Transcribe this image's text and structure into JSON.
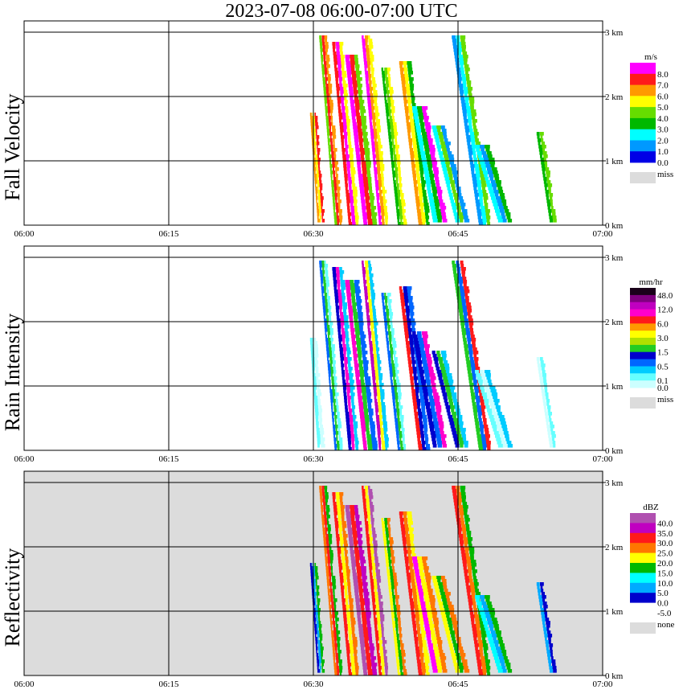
{
  "title": "2023-07-08   06:00-07:00 UTC",
  "x_ticks": [
    "06:00",
    "06:15",
    "06:30",
    "06:45",
    "07:00"
  ],
  "y_ticks": [
    "0 km",
    "1 km",
    "2 km",
    "3 km"
  ],
  "chart_data": [
    {
      "type": "heatmap",
      "ylabel": "Fall Velocity",
      "x_range": [
        "06:00",
        "07:00"
      ],
      "y_range_km": [
        0,
        3.2
      ],
      "background": "#ffffff",
      "legend": {
        "unit": "m/s",
        "entries": [
          {
            "label": "8.0",
            "color": "#ff00ff"
          },
          {
            "label": "7.0",
            "color": "#ff1a1a"
          },
          {
            "label": "6.0",
            "color": "#ff9900"
          },
          {
            "label": "5.0",
            "color": "#ffff00"
          },
          {
            "label": "4.0",
            "color": "#66dd00"
          },
          {
            "label": "3.0",
            "color": "#00b800"
          },
          {
            "label": "2.0",
            "color": "#00ffff"
          },
          {
            "label": "1.0",
            "color": "#0099ff"
          },
          {
            "label": "0.0",
            "color": "#0000e6"
          }
        ],
        "miss_label": "miss",
        "miss_color": "#dcdcdc"
      },
      "streaks": [
        {
          "t": 30.0,
          "top": 1.7,
          "shift": 0.8,
          "w": 0.7,
          "c": [
            "#ff9900",
            "#ffff00",
            "#ff1a1a"
          ]
        },
        {
          "t": 31.0,
          "top": 2.9,
          "shift": 1.6,
          "w": 0.8,
          "c": [
            "#66dd00",
            "#ff1a1a",
            "#ff9900"
          ]
        },
        {
          "t": 32.5,
          "top": 2.8,
          "shift": 1.7,
          "w": 1.1,
          "c": [
            "#ff1a1a",
            "#ff00ff",
            "#ffff00"
          ]
        },
        {
          "t": 34.0,
          "top": 2.6,
          "shift": 1.9,
          "w": 1.4,
          "c": [
            "#ff00ff",
            "#ff1a1a",
            "#66dd00"
          ]
        },
        {
          "t": 35.5,
          "top": 2.9,
          "shift": 1.8,
          "w": 1.0,
          "c": [
            "#ff00ff",
            "#ff9900",
            "#ffff00"
          ]
        },
        {
          "t": 37.5,
          "top": 2.4,
          "shift": 1.7,
          "w": 0.9,
          "c": [
            "#00b800",
            "#66dd00",
            "#ffff00"
          ]
        },
        {
          "t": 39.5,
          "top": 2.5,
          "shift": 2.0,
          "w": 1.2,
          "c": [
            "#ff9900",
            "#ffff00",
            "#00b800"
          ]
        },
        {
          "t": 41.0,
          "top": 1.8,
          "shift": 2.2,
          "w": 1.5,
          "c": [
            "#00ffff",
            "#00b800",
            "#ff00ff"
          ]
        },
        {
          "t": 43.0,
          "top": 1.5,
          "shift": 2.5,
          "w": 1.4,
          "c": [
            "#00ffff",
            "#66dd00",
            "#0099ff"
          ]
        },
        {
          "t": 45.0,
          "top": 2.9,
          "shift": 2.8,
          "w": 1.3,
          "c": [
            "#0099ff",
            "#00ffff",
            "#66dd00"
          ]
        },
        {
          "t": 47.5,
          "top": 1.2,
          "shift": 2.5,
          "w": 1.5,
          "c": [
            "#00ffff",
            "#0099ff",
            "#00b800"
          ]
        },
        {
          "t": 53.5,
          "top": 1.4,
          "shift": 1.4,
          "w": 0.7,
          "c": [
            "#00b800",
            "#66dd00"
          ]
        }
      ]
    },
    {
      "type": "heatmap",
      "ylabel": "Rain Intensity",
      "x_range": [
        "06:00",
        "07:00"
      ],
      "y_range_km": [
        0,
        3.2
      ],
      "background": "#ffffff",
      "legend": {
        "unit": "mm/hr",
        "entries": [
          {
            "label": "48.0",
            "color": "#1a001a"
          },
          {
            "label": "",
            "color": "#800080"
          },
          {
            "label": "12.0",
            "color": "#c000c0"
          },
          {
            "label": "",
            "color": "#ff00cc"
          },
          {
            "label": "6.0",
            "color": "#ff1a1a"
          },
          {
            "label": "",
            "color": "#ff9900"
          },
          {
            "label": "3.0",
            "color": "#ffff00"
          },
          {
            "label": "",
            "color": "#b0e000"
          },
          {
            "label": "1.5",
            "color": "#22cc22"
          },
          {
            "label": "",
            "color": "#0000cc"
          },
          {
            "label": "0.5",
            "color": "#0066ff"
          },
          {
            "label": "",
            "color": "#00ccff"
          },
          {
            "label": "0.1",
            "color": "#66ffff"
          },
          {
            "label": "0.0",
            "color": "#ccffff"
          }
        ],
        "miss_label": "miss",
        "miss_color": "#dcdcdc"
      },
      "streaks": [
        {
          "t": 30.0,
          "top": 1.7,
          "shift": 0.8,
          "w": 0.7,
          "c": [
            "#66ffff",
            "#ccffff"
          ]
        },
        {
          "t": 31.0,
          "top": 2.9,
          "shift": 1.6,
          "w": 0.8,
          "c": [
            "#0066ff",
            "#22cc22",
            "#66ffff"
          ]
        },
        {
          "t": 32.5,
          "top": 2.8,
          "shift": 1.7,
          "w": 1.1,
          "c": [
            "#0000cc",
            "#ff00cc",
            "#00ccff"
          ]
        },
        {
          "t": 34.0,
          "top": 2.6,
          "shift": 1.9,
          "w": 1.4,
          "c": [
            "#ff00cc",
            "#22cc22",
            "#0066ff"
          ]
        },
        {
          "t": 35.5,
          "top": 2.9,
          "shift": 1.8,
          "w": 1.0,
          "c": [
            "#c000c0",
            "#ffff00",
            "#00ccff"
          ]
        },
        {
          "t": 37.5,
          "top": 2.4,
          "shift": 1.7,
          "w": 0.9,
          "c": [
            "#0066ff",
            "#22cc22",
            "#66ffff"
          ]
        },
        {
          "t": 39.5,
          "top": 2.5,
          "shift": 2.0,
          "w": 1.2,
          "c": [
            "#ff1a1a",
            "#0000cc",
            "#0066ff"
          ]
        },
        {
          "t": 41.0,
          "top": 1.8,
          "shift": 2.2,
          "w": 1.5,
          "c": [
            "#0000cc",
            "#0066ff",
            "#ff00cc"
          ]
        },
        {
          "t": 43.0,
          "top": 1.5,
          "shift": 2.5,
          "w": 1.4,
          "c": [
            "#0000cc",
            "#22cc22",
            "#00ccff"
          ]
        },
        {
          "t": 45.0,
          "top": 2.9,
          "shift": 2.8,
          "w": 1.3,
          "c": [
            "#22cc22",
            "#0066ff",
            "#ff1a1a"
          ]
        },
        {
          "t": 47.5,
          "top": 1.2,
          "shift": 2.5,
          "w": 1.5,
          "c": [
            "#66ffff",
            "#ccffff",
            "#00ccff"
          ]
        },
        {
          "t": 53.5,
          "top": 1.4,
          "shift": 1.4,
          "w": 0.7,
          "c": [
            "#ccffff",
            "#66ffff"
          ]
        }
      ]
    },
    {
      "type": "heatmap",
      "ylabel": "Reflectivity",
      "x_range": [
        "06:00",
        "07:00"
      ],
      "y_range_km": [
        0,
        3.2
      ],
      "background": "#dcdcdc",
      "legend": {
        "unit": "dBZ",
        "entries": [
          {
            "label": "40.0",
            "color": "#b050b0"
          },
          {
            "label": "35.0",
            "color": "#c000c0"
          },
          {
            "label": "30.0",
            "color": "#ff1a1a"
          },
          {
            "label": "25.0",
            "color": "#ff7700"
          },
          {
            "label": "20.0",
            "color": "#ffff00"
          },
          {
            "label": "15.0",
            "color": "#00b800"
          },
          {
            "label": "10.0",
            "color": "#00ffff"
          },
          {
            "label": "5.0",
            "color": "#00aaff"
          },
          {
            "label": "0.0",
            "color": "#0000cc"
          },
          {
            "label": "-5.0",
            "color": "#ffffff"
          }
        ],
        "miss_label": "none",
        "miss_color": "#dcdcdc"
      },
      "streaks": [
        {
          "t": 30.0,
          "top": 1.7,
          "shift": 0.8,
          "w": 0.7,
          "c": [
            "#0000cc",
            "#00aaff",
            "#00b800"
          ]
        },
        {
          "t": 31.0,
          "top": 2.9,
          "shift": 1.6,
          "w": 0.8,
          "c": [
            "#ff7700",
            "#ff1a1a",
            "#00b800"
          ]
        },
        {
          "t": 32.5,
          "top": 2.8,
          "shift": 1.7,
          "w": 1.1,
          "c": [
            "#ff1a1a",
            "#ffff00",
            "#ff7700"
          ]
        },
        {
          "t": 34.0,
          "top": 2.6,
          "shift": 1.9,
          "w": 1.4,
          "c": [
            "#b050b0",
            "#ff1a1a",
            "#c000c0"
          ]
        },
        {
          "t": 35.5,
          "top": 2.9,
          "shift": 1.8,
          "w": 1.0,
          "c": [
            "#ff1a1a",
            "#ffff00",
            "#b050b0"
          ]
        },
        {
          "t": 37.5,
          "top": 2.4,
          "shift": 1.7,
          "w": 0.9,
          "c": [
            "#ffff00",
            "#00b800",
            "#ff7700"
          ]
        },
        {
          "t": 39.5,
          "top": 2.5,
          "shift": 2.0,
          "w": 1.2,
          "c": [
            "#ff1a1a",
            "#ff7700",
            "#ffff00"
          ]
        },
        {
          "t": 41.0,
          "top": 1.8,
          "shift": 2.2,
          "w": 1.5,
          "c": [
            "#ff00ff",
            "#ffff00",
            "#ff7700"
          ]
        },
        {
          "t": 43.0,
          "top": 1.5,
          "shift": 2.5,
          "w": 1.4,
          "c": [
            "#ffff00",
            "#00b800",
            "#ff7700"
          ]
        },
        {
          "t": 45.0,
          "top": 2.9,
          "shift": 2.8,
          "w": 1.3,
          "c": [
            "#ff1a1a",
            "#ff7700",
            "#00b800"
          ]
        },
        {
          "t": 47.5,
          "top": 1.2,
          "shift": 2.5,
          "w": 1.5,
          "c": [
            "#00ffff",
            "#00aaff",
            "#00b800"
          ]
        },
        {
          "t": 53.5,
          "top": 1.4,
          "shift": 1.4,
          "w": 0.7,
          "c": [
            "#00aaff",
            "#0000cc"
          ]
        }
      ]
    }
  ]
}
